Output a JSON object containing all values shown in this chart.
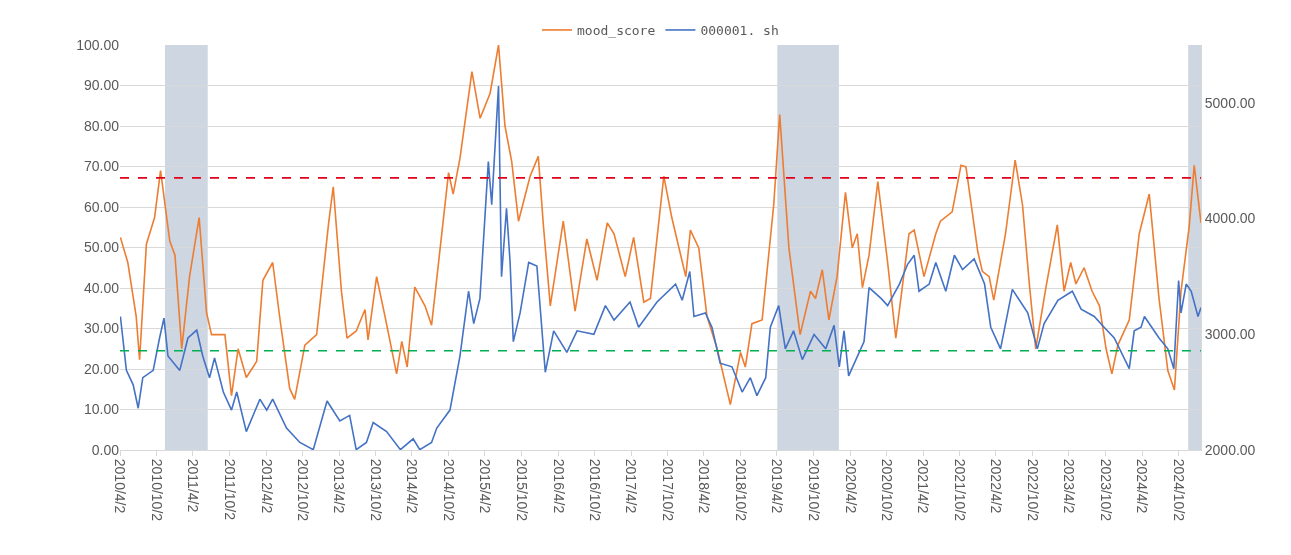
{
  "chart_data": {
    "type": "line",
    "legend": "top",
    "grid": "y",
    "marker": "none",
    "line_style": "solid",
    "xlim": [
      "2010-04-02",
      "2025-01-22"
    ],
    "xticks": [
      {
        "value": "2010-04-02",
        "label": "2010/4/2"
      },
      {
        "value": "2010-10-02",
        "label": "2010/10/2"
      },
      {
        "value": "2011-04-02",
        "label": "2011/4/2"
      },
      {
        "value": "2011-10-02",
        "label": "2011/10/2"
      },
      {
        "value": "2012-04-02",
        "label": "2012/4/2"
      },
      {
        "value": "2012-10-02",
        "label": "2012/10/2"
      },
      {
        "value": "2013-04-02",
        "label": "2013/4/2"
      },
      {
        "value": "2013-10-02",
        "label": "2013/10/2"
      },
      {
        "value": "2014-04-02",
        "label": "2014/4/2"
      },
      {
        "value": "2014-10-02",
        "label": "2014/10/2"
      },
      {
        "value": "2015-04-02",
        "label": "2015/4/2"
      },
      {
        "value": "2015-10-02",
        "label": "2015/10/2"
      },
      {
        "value": "2016-04-02",
        "label": "2016/4/2"
      },
      {
        "value": "2016-10-02",
        "label": "2016/10/2"
      },
      {
        "value": "2017-04-02",
        "label": "2017/4/2"
      },
      {
        "value": "2017-10-02",
        "label": "2017/10/2"
      },
      {
        "value": "2018-04-02",
        "label": "2018/4/2"
      },
      {
        "value": "2018-10-02",
        "label": "2018/10/2"
      },
      {
        "value": "2019-04-02",
        "label": "2019/4/2"
      },
      {
        "value": "2019-10-02",
        "label": "2019/10/2"
      },
      {
        "value": "2020-04-02",
        "label": "2020/4/2"
      },
      {
        "value": "2020-10-02",
        "label": "2020/10/2"
      },
      {
        "value": "2021-04-02",
        "label": "2021/4/2"
      },
      {
        "value": "2021-10-02",
        "label": "2021/10/2"
      },
      {
        "value": "2022-04-02",
        "label": "2022/4/2"
      },
      {
        "value": "2022-10-02",
        "label": "2022/10/2"
      },
      {
        "value": "2023-04-02",
        "label": "2023/4/2"
      },
      {
        "value": "2023-10-02",
        "label": "2023/10/2"
      },
      {
        "value": "2024-04-02",
        "label": "2024/4/2"
      },
      {
        "value": "2024-10-02",
        "label": "2024/10/2"
      }
    ],
    "ylim": [
      0,
      100
    ],
    "yticks": [
      {
        "value": 0,
        "label": "0.00"
      },
      {
        "value": 10,
        "label": "10.00"
      },
      {
        "value": 20,
        "label": "20.00"
      },
      {
        "value": 30,
        "label": "30.00"
      },
      {
        "value": 40,
        "label": "40.00"
      },
      {
        "value": 50,
        "label": "50.00"
      },
      {
        "value": 60,
        "label": "60.00"
      },
      {
        "value": 70,
        "label": "70.00"
      },
      {
        "value": 80,
        "label": "80.00"
      },
      {
        "value": 90,
        "label": "90.00"
      },
      {
        "value": 100,
        "label": "100.00"
      }
    ],
    "y2lim": [
      2000,
      5500
    ],
    "y2ticks": [
      {
        "value": 2000,
        "label": "2000.00"
      },
      {
        "value": 3000,
        "label": "3000.00"
      },
      {
        "value": 4000,
        "label": "4000.00"
      },
      {
        "value": 5000,
        "label": "5000.00"
      }
    ],
    "ref_lines": [
      {
        "axis": "y",
        "value": 67.2,
        "color": "#e3001b",
        "line_style": "dashed"
      },
      {
        "axis": "y",
        "value": 24.5,
        "color": "#00b050",
        "line_style": "dashed"
      }
    ],
    "bands": [
      {
        "axis": "x",
        "from": "2010-11-13",
        "to": "2011-06-15",
        "color": "#c5cfdd"
      },
      {
        "axis": "x",
        "from": "2019-04-04",
        "to": "2020-02-06",
        "color": "#c5cfdd"
      },
      {
        "axis": "x",
        "from": "2024-11-19",
        "to": "2025-01-22",
        "color": "#c5cfdd"
      }
    ],
    "series": [
      {
        "name": "mood_score",
        "color": "#ed7d31",
        "x": [
          "2010-04-04",
          "2010-05-11",
          "2010-06-22",
          "2010-07-09",
          "2010-08-12",
          "2010-09-22",
          "2010-10-22",
          "2010-12-07",
          "2011-01-02",
          "2011-02-05",
          "2011-03-16",
          "2011-05-03",
          "2011-06-09",
          "2011-07-04",
          "2011-09-09",
          "2011-10-12",
          "2011-11-14",
          "2011-12-25",
          "2012-02-15",
          "2012-03-17",
          "2012-05-05",
          "2012-06-11",
          "2012-07-29",
          "2012-08-23",
          "2012-10-13",
          "2012-12-11",
          "2013-02-09",
          "2013-03-04",
          "2013-04-14",
          "2013-05-12",
          "2013-06-27",
          "2013-08-10",
          "2013-08-25",
          "2013-10-07",
          "2013-11-18",
          "2014-01-15",
          "2014-02-10",
          "2014-03-09",
          "2014-04-16",
          "2014-06-06",
          "2014-07-09",
          "2014-08-27",
          "2014-10-02",
          "2014-10-25",
          "2014-11-28",
          "2015-01-27",
          "2015-03-09",
          "2015-04-28",
          "2015-06-09",
          "2015-07-11",
          "2015-08-14",
          "2015-09-17",
          "2015-11-14",
          "2015-12-25",
          "2016-01-20",
          "2016-02-23",
          "2016-04-28",
          "2016-06-26",
          "2016-08-24",
          "2016-10-14",
          "2016-12-04",
          "2017-01-07",
          "2017-03-04",
          "2017-04-15",
          "2017-06-05",
          "2017-07-08",
          "2017-09-13",
          "2017-10-23",
          "2018-01-01",
          "2018-01-24",
          "2018-03-07",
          "2018-04-17",
          "2018-06-07",
          "2018-08-12",
          "2018-10-02",
          "2018-10-26",
          "2018-11-28",
          "2019-01-18",
          "2019-03-17",
          "2019-04-16",
          "2019-06-01",
          "2019-07-27",
          "2019-09-17",
          "2019-10-12",
          "2019-11-15",
          "2019-12-18",
          "2020-01-28",
          "2020-03-10",
          "2020-04-13",
          "2020-05-08",
          "2020-06-03",
          "2020-07-06",
          "2020-08-19",
          "2020-10-07",
          "2020-11-17",
          "2021-01-22",
          "2021-02-17",
          "2021-04-07",
          "2021-06-05",
          "2021-06-28",
          "2021-08-26",
          "2021-10-09",
          "2021-11-03",
          "2022-01-01",
          "2022-01-24",
          "2022-02-27",
          "2022-03-22",
          "2022-05-20",
          "2022-07-07",
          "2022-08-13",
          "2022-09-16",
          "2022-10-18",
          "2022-12-08",
          "2023-02-03",
          "2023-03-09",
          "2023-04-11",
          "2023-05-07",
          "2023-06-17",
          "2023-07-27",
          "2023-09-02",
          "2023-10-05",
          "2023-11-03",
          "2023-12-03",
          "2024-01-29",
          "2024-03-19",
          "2024-05-08",
          "2024-06-26",
          "2024-08-09",
          "2024-09-11",
          "2024-10-14",
          "2024-11-24",
          "2024-12-19",
          "2025-01-22"
        ],
        "values": [
          52.5,
          46.3,
          33.0,
          22.3,
          50.8,
          57.4,
          69.0,
          51.6,
          48.1,
          25.0,
          42.8,
          57.4,
          33.9,
          28.5,
          28.5,
          13.4,
          25.0,
          17.9,
          21.9,
          41.9,
          46.3,
          32.1,
          15.2,
          12.5,
          25.9,
          28.5,
          56.1,
          65.0,
          39.2,
          27.6,
          29.4,
          34.7,
          27.2,
          42.8,
          33.0,
          18.8,
          26.8,
          20.5,
          40.2,
          35.6,
          30.8,
          52.5,
          68.5,
          63.2,
          72.0,
          93.4,
          81.9,
          88.1,
          100.0,
          80.1,
          71.2,
          56.5,
          67.6,
          72.5,
          55.2,
          35.6,
          56.5,
          34.3,
          52.1,
          41.9,
          56.1,
          53.4,
          42.8,
          52.5,
          36.5,
          37.4,
          67.6,
          57.4,
          42.8,
          54.3,
          49.9,
          33.0,
          25.0,
          11.2,
          24.1,
          20.5,
          31.2,
          32.1,
          60.5,
          82.8,
          49.9,
          28.5,
          39.2,
          37.4,
          44.5,
          32.1,
          42.8,
          63.6,
          49.9,
          53.4,
          40.1,
          48.1,
          66.3,
          46.3,
          27.6,
          53.4,
          54.3,
          42.8,
          53.4,
          56.5,
          58.8,
          70.3,
          69.9,
          49.0,
          44.1,
          42.8,
          37.0,
          53.4,
          71.6,
          60.5,
          41.0,
          25.0,
          40.1,
          55.6,
          39.2,
          46.3,
          41.0,
          45.0,
          39.2,
          35.6,
          25.0,
          18.8,
          25.9,
          32.1,
          53.4,
          63.2,
          37.4,
          19.6,
          14.8,
          39.2,
          55.2,
          70.3,
          56.1
        ]
      },
      {
        "name": "000001. sh",
        "color": "#4472c4",
        "axis": "y2",
        "x": [
          "2010-04-04",
          "2010-05-04",
          "2010-06-07",
          "2010-07-02",
          "2010-07-25",
          "2010-09-15",
          "2010-10-17",
          "2010-11-08",
          "2010-11-28",
          "2011-01-26",
          "2011-03-08",
          "2011-04-21",
          "2011-05-21",
          "2011-06-24",
          "2011-07-19",
          "2011-09-01",
          "2011-10-12",
          "2011-11-07",
          "2011-12-25",
          "2012-03-02",
          "2012-04-05",
          "2012-05-05",
          "2012-07-13",
          "2012-09-18",
          "2012-11-24",
          "2013-02-01",
          "2013-04-06",
          "2013-05-25",
          "2013-06-27",
          "2013-08-17",
          "2013-09-20",
          "2013-11-26",
          "2014-02-03",
          "2014-04-08",
          "2014-05-11",
          "2014-07-09",
          "2014-08-04",
          "2014-10-09",
          "2014-11-28",
          "2015-01-10",
          "2015-02-05",
          "2015-03-08",
          "2015-04-19",
          "2015-05-06",
          "2015-06-09",
          "2015-06-24",
          "2015-07-19",
          "2015-08-06",
          "2015-08-22",
          "2015-09-25",
          "2015-11-07",
          "2015-12-18",
          "2016-01-29",
          "2016-03-11",
          "2016-05-16",
          "2016-07-06",
          "2016-09-28",
          "2016-11-25",
          "2017-01-07",
          "2017-03-28",
          "2017-05-10",
          "2017-08-10",
          "2017-11-11",
          "2017-12-14",
          "2018-01-21",
          "2018-02-11",
          "2018-04-09",
          "2018-05-12",
          "2018-06-22",
          "2018-08-20",
          "2018-10-10",
          "2018-11-20",
          "2018-12-23",
          "2019-02-05",
          "2019-02-28",
          "2019-04-11",
          "2019-05-14",
          "2019-06-24",
          "2019-08-07",
          "2019-10-05",
          "2019-12-02",
          "2020-01-13",
          "2020-02-08",
          "2020-03-03",
          "2020-03-26",
          "2020-06-11",
          "2020-07-06",
          "2020-09-04",
          "2020-10-07",
          "2020-12-05",
          "2021-01-15",
          "2021-02-17",
          "2021-03-13",
          "2021-05-03",
          "2021-06-05",
          "2021-07-25",
          "2021-09-06",
          "2021-10-17",
          "2021-12-14",
          "2022-02-04",
          "2022-03-07",
          "2022-04-25",
          "2022-06-23",
          "2022-09-08",
          "2022-10-26",
          "2022-11-29",
          "2023-02-06",
          "2023-04-19",
          "2023-06-02",
          "2023-08-07",
          "2023-09-25",
          "2023-11-15",
          "2024-01-29",
          "2024-02-23",
          "2024-03-28",
          "2024-04-14",
          "2024-06-26",
          "2024-08-09",
          "2024-09-08",
          "2024-10-02",
          "2024-10-14",
          "2024-11-09",
          "2024-12-04",
          "2025-01-07",
          "2025-01-22"
        ],
        "values": [
          3154,
          2688,
          2563,
          2361,
          2625,
          2688,
          2968,
          3139,
          2812,
          2688,
          2968,
          3036,
          2812,
          2625,
          2796,
          2501,
          2345,
          2501,
          2159,
          2439,
          2345,
          2439,
          2190,
          2065,
          2003,
          2423,
          2252,
          2299,
          2003,
          2065,
          2237,
          2159,
          2003,
          2097,
          2003,
          2065,
          2190,
          2345,
          2812,
          3372,
          3092,
          3310,
          4492,
          4119,
          5145,
          3497,
          4088,
          3621,
          2936,
          3185,
          3621,
          3590,
          2672,
          3030,
          2843,
          3030,
          2999,
          3248,
          3123,
          3279,
          3061,
          3279,
          3434,
          3294,
          3543,
          3154,
          3185,
          3061,
          2750,
          2719,
          2501,
          2625,
          2470,
          2625,
          3061,
          3248,
          2874,
          3030,
          2781,
          2999,
          2874,
          3077,
          2719,
          3030,
          2641,
          2937,
          3403,
          3310,
          3248,
          3434,
          3605,
          3683,
          3372,
          3434,
          3621,
          3372,
          3683,
          3559,
          3652,
          3434,
          3061,
          2874,
          3388,
          3185,
          2874,
          3092,
          3294,
          3372,
          3217,
          3154,
          3061,
          2968,
          2703,
          3030,
          3061,
          3154,
          2968,
          2874,
          2703,
          3465,
          3185,
          3434,
          3372,
          3154,
          3232
        ]
      }
    ]
  }
}
